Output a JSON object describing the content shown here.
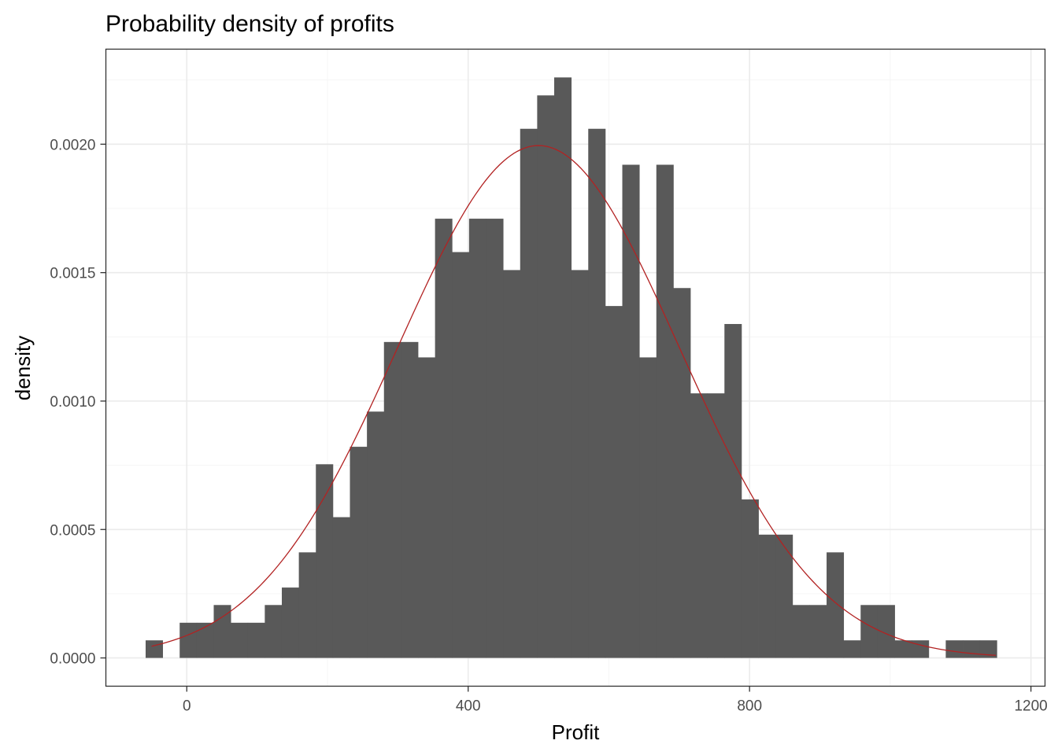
{
  "chart_data": {
    "type": "bar",
    "title": "Probability density of profits",
    "xlabel": "Profit",
    "ylabel": "density",
    "xlim": [
      -115,
      1220
    ],
    "ylim": [
      -0.00011,
      0.00237
    ],
    "x_ticks": [
      0,
      400,
      800,
      1200
    ],
    "x_tick_labels": [
      "0",
      "400",
      "800",
      "1200"
    ],
    "y_ticks": [
      0.0,
      0.0005,
      0.001,
      0.0015,
      0.002
    ],
    "y_tick_labels": [
      "0.0000",
      "0.0005",
      "0.0010",
      "0.0015",
      "0.0020"
    ],
    "x_minor_ticks": [
      200,
      600,
      1000
    ],
    "y_minor_ticks": [
      0.00025,
      0.00075,
      0.00125,
      0.00175,
      0.00225
    ],
    "grid": true,
    "bin_width": 24.2,
    "bins_start": -58.5,
    "values": [
      6.85e-05,
      0,
      0.000137,
      0.000137,
      0.000206,
      0.000137,
      0.000137,
      0.000206,
      0.000274,
      0.000411,
      0.000754,
      0.000548,
      0.000822,
      0.000959,
      0.00123,
      0.00123,
      0.00117,
      0.00171,
      0.00158,
      0.00171,
      0.00171,
      0.00151,
      0.00206,
      0.00219,
      0.00226,
      0.00151,
      0.00206,
      0.00137,
      0.00192,
      0.00117,
      0.00192,
      0.00144,
      0.00103,
      0.00103,
      0.0013,
      0.000617,
      0.00048,
      0.00048,
      0.000206,
      0.000206,
      0.000411,
      6.85e-05,
      0.000206,
      0.000206,
      6.85e-05,
      6.85e-05,
      0,
      6.85e-05,
      6.85e-05,
      6.85e-05
    ],
    "density_curve": {
      "type": "normal",
      "mean": 500,
      "sd": 200,
      "x_range": [
        -50,
        1150
      ],
      "color": "#b22222"
    },
    "bar_color": "#595959"
  }
}
